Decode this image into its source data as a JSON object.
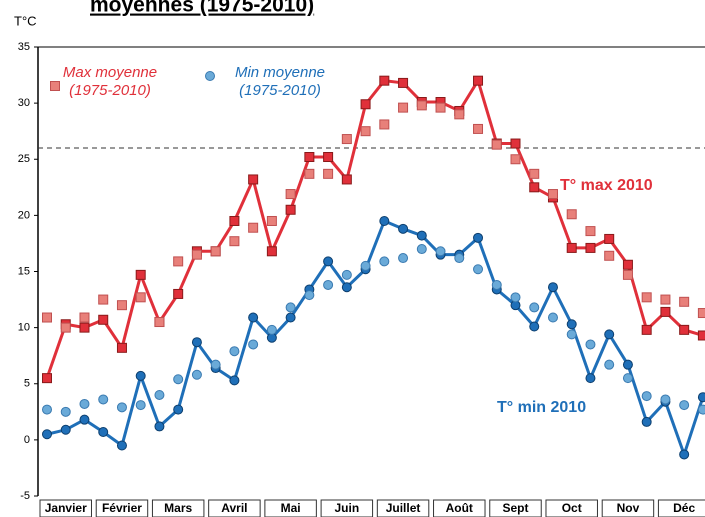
{
  "chart_data": {
    "type": "line",
    "title": "moyennes (1975-2010)",
    "y_label": "T°C",
    "categories": [
      null,
      "Janvier",
      null,
      null,
      "Février",
      null,
      null,
      "Mars",
      null,
      null,
      "Avril",
      null,
      null,
      "Mai",
      null,
      null,
      "Juin",
      null,
      null,
      "Juillet",
      null,
      null,
      "Août",
      null,
      null,
      "Sept",
      null,
      null,
      "Oct",
      null,
      null,
      "Nov",
      null,
      null,
      "Déc",
      null
    ],
    "ylim": [
      -5,
      35
    ],
    "yticks": [
      -5,
      0,
      5,
      10,
      15,
      20,
      25,
      30,
      35
    ],
    "reference_line": 26,
    "series": [
      {
        "name": "T° max 2010",
        "color": "#e0303a",
        "marker": "square",
        "line": true,
        "values": [
          5.5,
          10.3,
          10,
          10.7,
          8.2,
          14.7,
          10.5,
          13,
          16.8,
          16.8,
          19.5,
          23.2,
          16.8,
          20.5,
          25.2,
          25.2,
          23.2,
          29.9,
          32,
          31.8,
          30.1,
          30.1,
          29.3,
          32,
          26.4,
          26.4,
          22.5,
          21.6,
          17.1,
          17.1,
          17.9,
          15.6,
          9.8,
          11.4,
          9.8,
          9.3
        ]
      },
      {
        "name": "Max moyenne (1975-2010)",
        "color": "#e8807a",
        "marker": "square",
        "line": false,
        "values": [
          10.9,
          10,
          10.9,
          12.5,
          12,
          12.7,
          10.5,
          15.9,
          16.5,
          16.8,
          17.7,
          18.9,
          19.5,
          21.9,
          23.7,
          23.7,
          26.8,
          27.5,
          28.1,
          29.6,
          29.8,
          29.6,
          29,
          27.7,
          26.3,
          25,
          23.7,
          21.9,
          20.1,
          18.6,
          16.4,
          14.7,
          12.7,
          12.5,
          12.3,
          11.3
        ]
      },
      {
        "name": "T° min 2010",
        "color": "#1f6fb8",
        "marker": "circle",
        "line": true,
        "values": [
          0.5,
          0.9,
          1.8,
          0.7,
          -0.5,
          5.7,
          1.2,
          2.7,
          8.7,
          6.4,
          5.3,
          10.9,
          9.1,
          10.9,
          13.4,
          15.9,
          13.6,
          15.2,
          19.5,
          18.8,
          18.2,
          16.5,
          16.5,
          18,
          13.4,
          12,
          10.1,
          13.6,
          10.3,
          5.5,
          9.4,
          6.7,
          1.6,
          3.4,
          -1.3,
          3.8
        ]
      },
      {
        "name": "Min moyenne (1975-2010)",
        "color": "#6aaad8",
        "marker": "circle",
        "line": false,
        "values": [
          2.7,
          2.5,
          3.2,
          3.6,
          2.9,
          3.1,
          4,
          5.4,
          5.8,
          6.7,
          7.9,
          8.5,
          9.8,
          11.8,
          12.9,
          13.8,
          14.7,
          15.5,
          15.9,
          16.2,
          17,
          16.8,
          16.2,
          15.2,
          13.8,
          12.7,
          11.8,
          10.9,
          9.4,
          8.5,
          6.7,
          5.5,
          3.9,
          3.6,
          3.1,
          2.7
        ]
      }
    ]
  }
}
